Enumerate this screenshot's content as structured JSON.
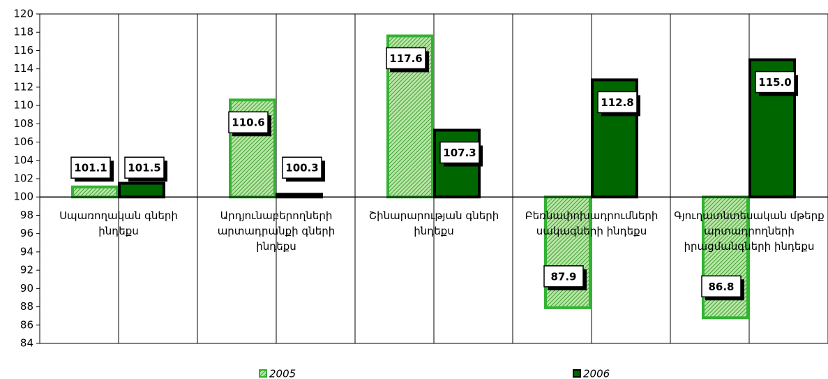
{
  "chart_data": {
    "type": "bar",
    "categories": [
      "Սպառողական գների ինդեքս",
      "Արդյունաբերողների արտադրանքի գների ինդեքս",
      "Շինարարության գների ինդեքս",
      "Բեռնափոխադրումների սակագների ինդեքս",
      "Գյուղատնտեսական մթերք արտադրողների իրացմանգների ինդեքս"
    ],
    "series": [
      {
        "name": "2005",
        "color": "#7fcf5f",
        "hatch": true,
        "values": [
          101.1,
          110.6,
          117.6,
          87.9,
          86.8
        ],
        "value_labels": [
          "101.1",
          "110.6",
          "117.6",
          "87.9",
          "86.8"
        ]
      },
      {
        "name": "2006",
        "color": "#006600",
        "hatch": false,
        "values": [
          101.5,
          100.3,
          107.3,
          112.8,
          115.0
        ],
        "value_labels": [
          "101.5",
          "100.3",
          "107.3",
          "112.8",
          "115.0"
        ]
      }
    ],
    "ylim": [
      84,
      120
    ],
    "yticks": [
      84,
      86,
      88,
      90,
      92,
      94,
      96,
      98,
      100,
      102,
      104,
      106,
      108,
      110,
      112,
      114,
      116,
      118,
      120
    ],
    "x_axis_crosses": 100,
    "grid": true,
    "legend": "bottom"
  }
}
